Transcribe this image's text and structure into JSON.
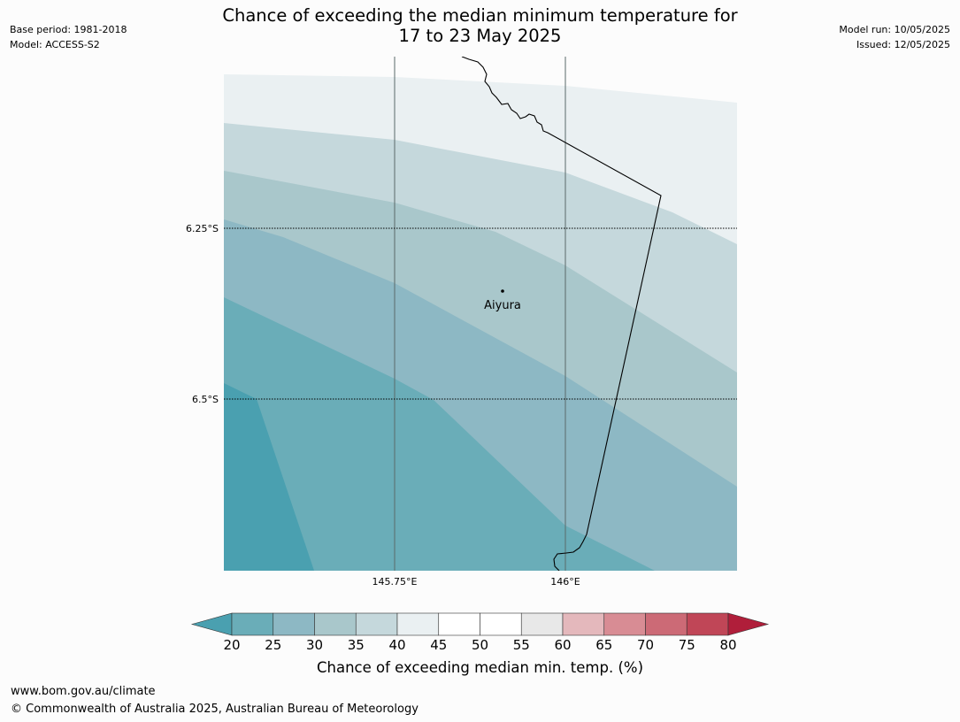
{
  "title_line1": "Chance of exceeding the median minimum temperature for",
  "title_line2": "17 to 23 May 2025",
  "base_period": "Base period: 1981-2018",
  "model": "Model: ACCESS-S2",
  "model_run": "Model run: 10/05/2025",
  "issued": "Issued: 12/05/2025",
  "map": {
    "location": "Aiyura",
    "lat_labels": [
      "6.25°S",
      "6.5°S"
    ],
    "lon_labels": [
      "145.75°E",
      "146°E"
    ],
    "contour_fill_percent_bands": [
      "40-45",
      "35-40",
      "30-35",
      "25-30",
      "20-25",
      "below 20"
    ]
  },
  "colorbar": {
    "ticks": [
      "20",
      "25",
      "30",
      "35",
      "40",
      "45",
      "50",
      "55",
      "60",
      "65",
      "70",
      "75",
      "80"
    ],
    "colors": [
      "#6aadb8",
      "#8db8c4",
      "#a9c7cb",
      "#c5d8dc",
      "#eaf0f2",
      "#ffffff",
      "#ffffff",
      "#e8e8e8",
      "#e4b8bc",
      "#d88c94",
      "#cc6a76",
      "#c04657"
    ],
    "under_color": "#4aa0b0",
    "over_color": "#b01e3a",
    "label": "Chance of exceeding median min. temp. (%)"
  },
  "footer_url": "www.bom.gov.au/climate",
  "footer_copyright": "© Commonwealth of Australia 2025, Australian Bureau of Meteorology"
}
